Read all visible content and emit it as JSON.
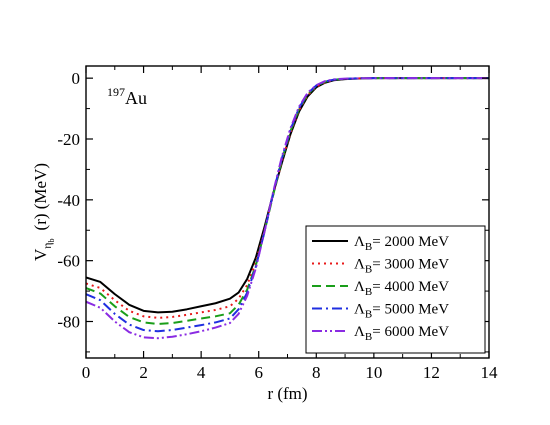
{
  "chart_data": {
    "type": "line",
    "xlabel": "r (fm)",
    "ylabel": {
      "main": "V",
      "sub": "η",
      "subsub": "b",
      "rest": "(r)  (MeV)"
    },
    "xlim": [
      0,
      14
    ],
    "ylim": [
      -92,
      4
    ],
    "xticks": [
      "0",
      "2",
      "4",
      "6",
      "8",
      "10",
      "12",
      "14"
    ],
    "yticks": [
      "0",
      "-20",
      "-40",
      "-60",
      "-80"
    ],
    "annotation": {
      "mass": "197",
      "element": "Au"
    },
    "legend_position": "lower-right",
    "series": [
      {
        "name": "Λ",
        "sub": "B",
        "value": "= 2000 MeV",
        "color": "#000000",
        "dash": "solid",
        "x": [
          0,
          0.5,
          1,
          1.5,
          2,
          2.5,
          3,
          3.5,
          4,
          4.5,
          5,
          5.3,
          5.6,
          5.9,
          6.2,
          6.5,
          6.8,
          7.1,
          7.4,
          7.7,
          8,
          8.3,
          8.6,
          9,
          9.5,
          10,
          11,
          12,
          14
        ],
        "y": [
          -65.5,
          -67,
          -71,
          -74.5,
          -76.5,
          -77,
          -76.8,
          -76,
          -75,
          -74,
          -72.5,
          -70.5,
          -66,
          -59,
          -49,
          -38,
          -28,
          -18.5,
          -11,
          -6,
          -3,
          -1.5,
          -0.7,
          -0.3,
          -0.1,
          0,
          0,
          0,
          0
        ]
      },
      {
        "name": "Λ",
        "sub": "B",
        "value": "= 3000 MeV",
        "color": "#e8191a",
        "dash": "dotted",
        "x": [
          0,
          0.5,
          1,
          1.5,
          2,
          2.5,
          3,
          3.5,
          4,
          4.5,
          5,
          5.3,
          5.6,
          5.9,
          6.2,
          6.5,
          6.8,
          7.1,
          7.4,
          7.7,
          8,
          8.3,
          8.6,
          9,
          9.5,
          10,
          11,
          12,
          14
        ],
        "y": [
          -67.5,
          -69,
          -73,
          -76.5,
          -78.3,
          -78.8,
          -78.5,
          -77.8,
          -77,
          -76.2,
          -75,
          -72.5,
          -68,
          -60.5,
          -50,
          -38.5,
          -27.5,
          -18,
          -10.5,
          -5.6,
          -2.8,
          -1.4,
          -0.6,
          -0.2,
          -0.05,
          0,
          0,
          0,
          0
        ]
      },
      {
        "name": "Λ",
        "sub": "B",
        "value": "= 4000 MeV",
        "color": "#1a9e1a",
        "dash": "dashed",
        "x": [
          0,
          0.5,
          1,
          1.5,
          2,
          2.5,
          3,
          3.5,
          4,
          4.5,
          5,
          5.3,
          5.6,
          5.9,
          6.2,
          6.5,
          6.8,
          7.1,
          7.4,
          7.7,
          8,
          8.3,
          8.6,
          9,
          9.5,
          10,
          11,
          12,
          14
        ],
        "y": [
          -69,
          -70.8,
          -75,
          -78.5,
          -80.3,
          -80.8,
          -80.5,
          -79.8,
          -79,
          -78.3,
          -77.3,
          -74.5,
          -69.5,
          -61.5,
          -50.5,
          -38.5,
          -27,
          -17.5,
          -10.2,
          -5.3,
          -2.6,
          -1.2,
          -0.5,
          -0.2,
          -0.05,
          0,
          0,
          0,
          0
        ]
      },
      {
        "name": "Λ",
        "sub": "B",
        "value": "= 5000 MeV",
        "color": "#1f2fe0",
        "dash": "dashdot",
        "x": [
          0,
          0.5,
          1,
          1.5,
          2,
          2.5,
          3,
          3.5,
          4,
          4.5,
          5,
          5.3,
          5.6,
          5.9,
          6.2,
          6.5,
          6.8,
          7.1,
          7.4,
          7.7,
          8,
          8.3,
          8.6,
          9,
          9.5,
          10,
          11,
          12,
          14
        ],
        "y": [
          -71,
          -73,
          -77.5,
          -81,
          -82.8,
          -83.2,
          -82.8,
          -82,
          -81.2,
          -80.3,
          -79,
          -76,
          -70.5,
          -62,
          -50.5,
          -38,
          -26.5,
          -17,
          -9.8,
          -5,
          -2.4,
          -1.1,
          -0.5,
          -0.2,
          -0.05,
          0,
          0,
          0,
          0
        ]
      },
      {
        "name": "Λ",
        "sub": "B",
        "value": "= 6000 MeV",
        "color": "#8a2be2",
        "dash": "dashdotdot",
        "x": [
          0,
          0.5,
          1,
          1.5,
          2,
          2.5,
          3,
          3.5,
          4,
          4.5,
          5,
          5.3,
          5.6,
          5.9,
          6.2,
          6.5,
          6.8,
          7.1,
          7.4,
          7.7,
          8,
          8.3,
          8.6,
          9,
          9.5,
          10,
          11,
          12,
          14
        ],
        "y": [
          -73.5,
          -75.5,
          -80,
          -83.5,
          -85.2,
          -85.5,
          -85,
          -84.2,
          -83.2,
          -82,
          -80.5,
          -77.5,
          -71.5,
          -62.5,
          -50.5,
          -37.5,
          -26,
          -16.5,
          -9.4,
          -4.8,
          -2.3,
          -1,
          -0.4,
          -0.15,
          -0.05,
          0,
          0,
          0,
          0
        ]
      }
    ]
  }
}
